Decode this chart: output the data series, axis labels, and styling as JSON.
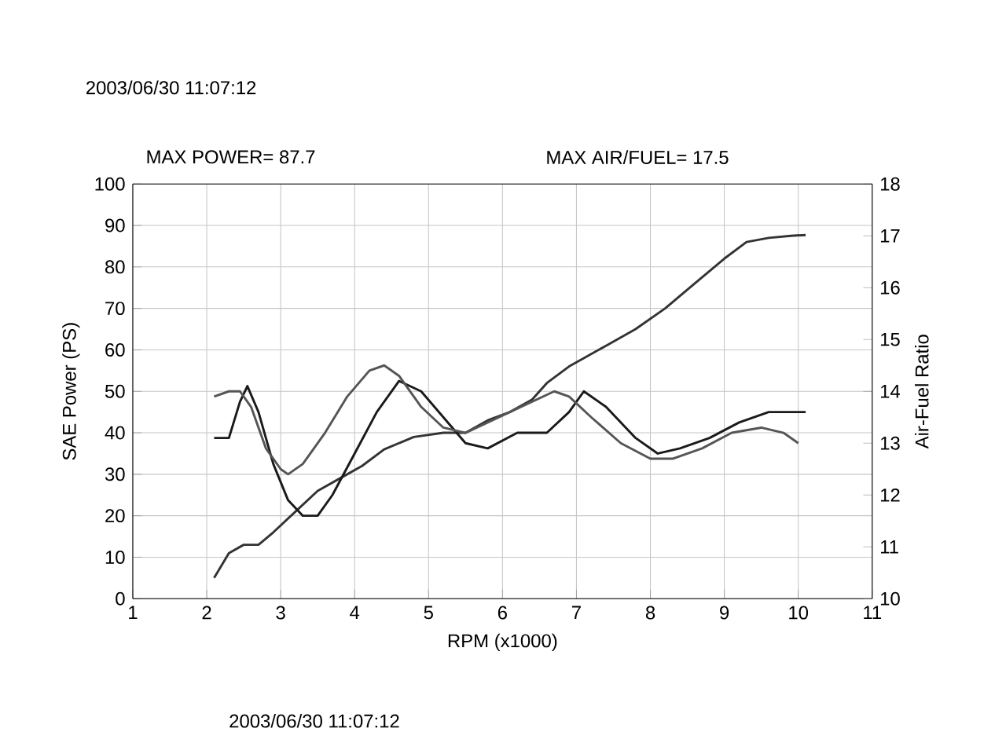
{
  "chart_data": {
    "type": "line",
    "xlabel": "RPM (x1000)",
    "ylabel": "SAE Power (PS)",
    "y2label": "Air-Fuel Ratio",
    "annotations": [
      "MAX POWER= 87.7",
      "MAX AIR/FUEL= 17.5",
      "2003/06/30 11:07:12",
      "2003/06/30 11:07:12"
    ],
    "xlim": [
      1,
      11
    ],
    "xticks": [
      1,
      2,
      3,
      4,
      5,
      6,
      7,
      8,
      9,
      10,
      11
    ],
    "ylim": [
      0,
      100
    ],
    "yticks": [
      0,
      10,
      20,
      30,
      40,
      50,
      60,
      70,
      80,
      90,
      100
    ],
    "y2lim": [
      10,
      18
    ],
    "y2ticks": [
      10,
      11,
      12,
      13,
      14,
      15,
      16,
      17,
      18
    ],
    "grid": true,
    "line_style": "solid",
    "series": [
      {
        "color": "#333333",
        "x": [
          2.1,
          2.3,
          2.5,
          2.7,
          2.9,
          3.2,
          3.5,
          3.8,
          4.1,
          4.4,
          4.8,
          5.2,
          5.5,
          5.8,
          6.1,
          6.4,
          6.6,
          6.9,
          7.1,
          7.4,
          7.8,
          8.2,
          8.6,
          9.0,
          9.3,
          9.6,
          9.9,
          10.1
        ],
        "values": [
          5,
          11,
          13,
          13,
          16,
          21,
          26,
          29,
          32,
          36,
          39,
          40,
          40,
          43,
          45,
          48,
          52,
          56,
          58,
          61,
          65,
          70,
          76,
          82,
          86,
          87,
          87.5,
          87.7
        ]
      },
      {
        "color": "#1a1a1a",
        "axis": "y2",
        "x": [
          2.1,
          2.3,
          2.45,
          2.55,
          2.7,
          2.9,
          3.1,
          3.3,
          3.5,
          3.7,
          4.0,
          4.3,
          4.6,
          4.9,
          5.2,
          5.5,
          5.8,
          6.2,
          6.6,
          6.9,
          7.1,
          7.4,
          7.8,
          8.1,
          8.4,
          8.8,
          9.2,
          9.6,
          10.1
        ],
        "values": [
          13.1,
          13.1,
          13.8,
          14.1,
          13.6,
          12.6,
          11.9,
          11.6,
          11.6,
          12.0,
          12.8,
          13.6,
          14.2,
          14.0,
          13.5,
          13.0,
          12.9,
          13.2,
          13.2,
          13.6,
          14.0,
          13.7,
          13.1,
          12.8,
          12.9,
          13.1,
          13.4,
          13.6,
          13.6
        ]
      },
      {
        "color": "#555555",
        "axis": "y2",
        "x": [
          2.1,
          2.3,
          2.45,
          2.6,
          2.8,
          3.0,
          3.1,
          3.3,
          3.6,
          3.9,
          4.2,
          4.4,
          4.6,
          4.9,
          5.2,
          5.5,
          5.8,
          6.1,
          6.4,
          6.7,
          6.9,
          7.2,
          7.6,
          8.0,
          8.3,
          8.7,
          9.1,
          9.5,
          9.8,
          10.0
        ],
        "values": [
          13.9,
          14.0,
          14.0,
          13.7,
          12.9,
          12.5,
          12.4,
          12.6,
          13.2,
          13.9,
          14.4,
          14.5,
          14.3,
          13.7,
          13.3,
          13.2,
          13.4,
          13.6,
          13.8,
          14.0,
          13.9,
          13.5,
          13.0,
          12.7,
          12.7,
          12.9,
          13.2,
          13.3,
          13.2,
          13.0
        ]
      }
    ]
  }
}
